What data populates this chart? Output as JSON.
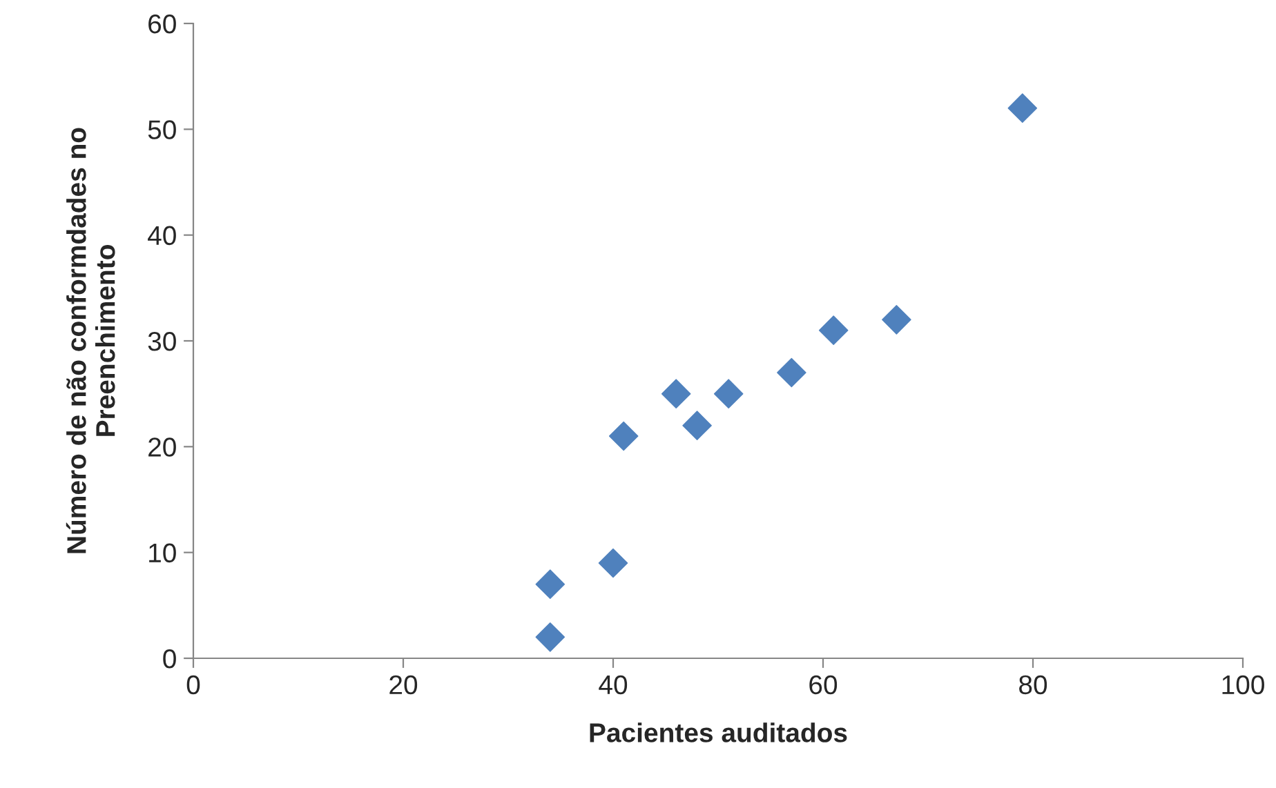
{
  "chart_data": {
    "type": "scatter",
    "xlabel": "Pacientes auditados",
    "ylabel": "Número de não conformdades no\nPreenchimento",
    "x": [
      34,
      34,
      40,
      41,
      46,
      48,
      51,
      57,
      61,
      67,
      79
    ],
    "series": [
      {
        "color": "#4f81bd",
        "values": [
          7,
          2,
          9,
          21,
          25,
          22,
          25,
          27,
          31,
          32,
          52
        ]
      }
    ],
    "xlim": [
      0,
      100
    ],
    "xticks": [
      0,
      20,
      40,
      60,
      80,
      100
    ],
    "ylim": [
      0,
      60
    ],
    "yticks": [
      0,
      10,
      20,
      30,
      40,
      50,
      60
    ],
    "grid": false,
    "legend": false,
    "marker": "diamond"
  }
}
